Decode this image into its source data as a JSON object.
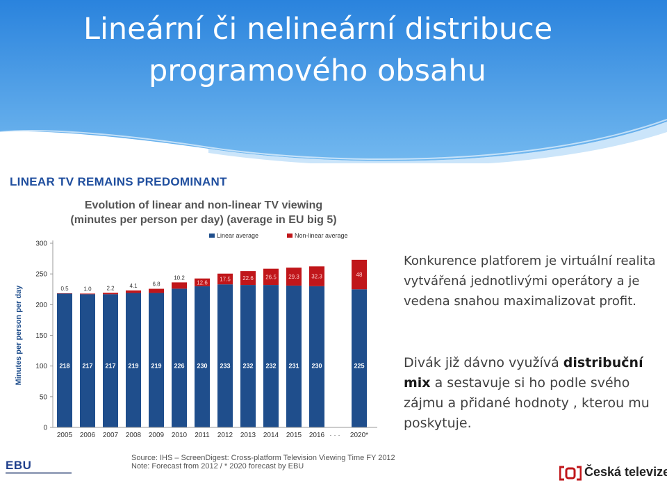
{
  "slide": {
    "title_line1": "Lineární či nelineární distribuce",
    "title_line2": "programového obsahu"
  },
  "chart_headline": "LINEAR TV REMAINS PREDOMINANT",
  "chart_data": {
    "type": "bar",
    "stacked": true,
    "title_line1": "Evolution of linear and non-linear TV viewing",
    "title_line2": "(minutes per person per day) (average in EU big 5)",
    "ylabel": "Minutes per person per day",
    "ylim": [
      0,
      300
    ],
    "yticks": [
      0,
      50,
      100,
      150,
      200,
      250,
      300
    ],
    "categories": [
      "2005",
      "2006",
      "2007",
      "2008",
      "2009",
      "2010",
      "2011",
      "2012",
      "2013",
      "2014",
      "2015",
      "2016",
      "2020*"
    ],
    "gap_label": "· · ·",
    "series": [
      {
        "name": "Linear average",
        "color": "#1f4e8c",
        "values": [
          218,
          217,
          217,
          219,
          219,
          226,
          230,
          233,
          232,
          232,
          231,
          230,
          225
        ],
        "labels": [
          "218",
          "217",
          "217",
          "219",
          "219",
          "226",
          "230",
          "233",
          "232",
          "232",
          "231",
          "230",
          "225"
        ]
      },
      {
        "name": "Non-linear average",
        "color": "#c0161a",
        "values": [
          0.5,
          1.0,
          2.2,
          4.1,
          6.8,
          10.2,
          12.6,
          17.5,
          22.6,
          26.5,
          29.3,
          32.3,
          48
        ],
        "labels": [
          "0.5",
          "1.0",
          "2.2",
          "4.1",
          "6.8",
          "10.2",
          "12.6",
          "17.5",
          "22.6",
          "26.5",
          "29.3",
          "32.3",
          "48"
        ]
      }
    ],
    "grid": false,
    "legend_position": "top"
  },
  "source": {
    "line1": "Source: IHS – ScreenDigest: Cross-platform Television Viewing Time FY 2012",
    "line2": "Note: Forecast from 2012  /  * 2020 forecast by EBU"
  },
  "logos": {
    "ebu": "EBU",
    "ceska_televize": "Česká televize"
  },
  "content": {
    "p1": "Konkurence platforem je virtuální realita vytvářená jednotlivými operátory a je vedena snahou maximalizovat profit.",
    "p2_before": "Divák již dávno využívá ",
    "p2_bold": "distribuční mix",
    "p2_after": " a sestavuje si ho podle svého zájmu a přidané hodnoty , kterou mu poskytuje."
  },
  "colors": {
    "title_gradient_top": "#2a83dd",
    "title_gradient_bottom": "#7fc0f2",
    "linear": "#1f4e8c",
    "non_linear": "#c0161a",
    "headline": "#1f4e9e"
  }
}
